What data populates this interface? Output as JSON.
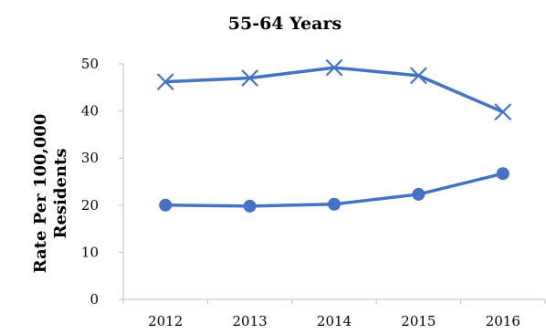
{
  "chart_data": {
    "type": "line",
    "title": "55-64 Years",
    "ylabel_lines": [
      "Rate Per 100,000",
      "Residents"
    ],
    "xlabel": "",
    "categories": [
      "2012",
      "2013",
      "2014",
      "2015",
      "2016"
    ],
    "ylim": [
      0,
      50
    ],
    "yticks": [
      0,
      10,
      20,
      30,
      40,
      50
    ],
    "grid": false,
    "legend": "none",
    "color": "#4472C4",
    "series": [
      {
        "marker": "x",
        "values": [
          46.2,
          47.0,
          49.2,
          47.5,
          39.8
        ]
      },
      {
        "marker": "circle",
        "values": [
          20.0,
          19.8,
          20.2,
          22.3,
          26.7
        ]
      }
    ]
  }
}
